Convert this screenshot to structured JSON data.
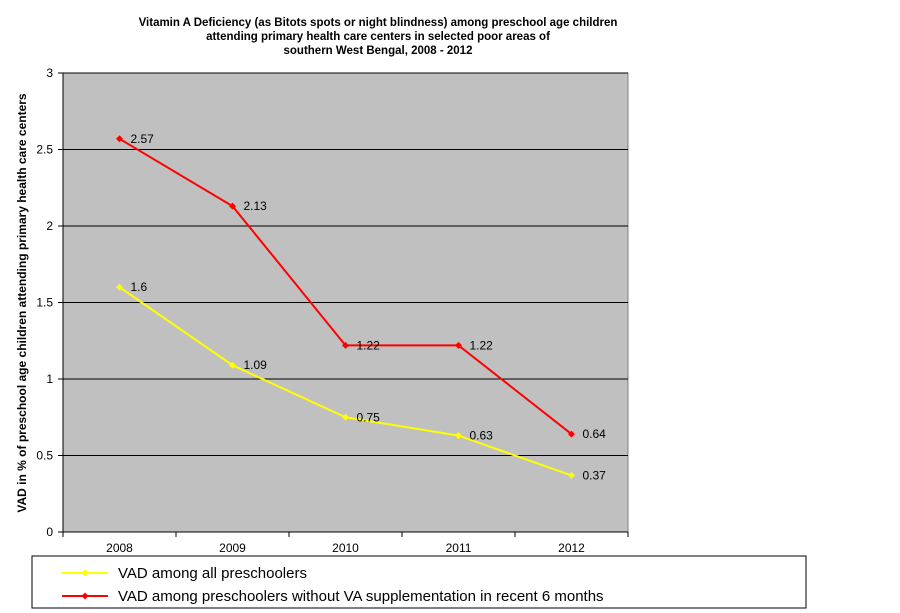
{
  "chart_data": {
    "type": "line",
    "title_lines": [
      "Vitamin A Deficiency (as Bitots spots or night blindness)  among preschool age children",
      "attending primary health care centers in  selected poor areas of",
      "southern West Bengal, 2008 - 2012"
    ],
    "ylabel": "VAD in % of preschool age children attending primary health care centers",
    "xlabel": "",
    "categories": [
      "2008",
      "2009",
      "2010",
      "2011",
      "2012"
    ],
    "ylim": [
      0,
      3
    ],
    "yticks": [
      "0",
      "0.5",
      "1",
      "1.5",
      "2",
      "2.5",
      "3"
    ],
    "grid": true,
    "legend_position": "bottom",
    "plot_background": "#c0c0c0",
    "series": [
      {
        "name": "VAD among all preschoolers",
        "values": [
          1.6,
          1.09,
          0.75,
          0.63,
          0.37
        ],
        "labels": [
          "1.6",
          "1.09",
          "0.75",
          "0.63",
          "0.37"
        ],
        "color": "#ffff00"
      },
      {
        "name": "VAD among preschoolers without VA supplementation in recent 6 months",
        "values": [
          2.57,
          2.13,
          1.22,
          1.22,
          0.64
        ],
        "labels": [
          "2.57",
          "2.13",
          "1.22",
          "1.22",
          "0.64"
        ],
        "color": "#ff0000"
      }
    ]
  }
}
